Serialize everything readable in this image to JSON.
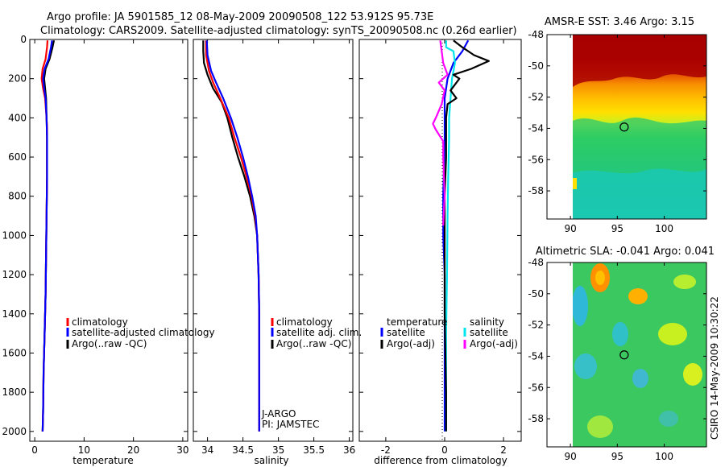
{
  "title": {
    "line1": "Argo profile: JA 5901585_12 08-May-2009 20090508_122 53.912S 95.73E",
    "line2": "Climatology: CARS2009. Satellite-adjusted climatology: synTS_20090508.nc (0.26d earlier)"
  },
  "colors": {
    "climatology": "#ff0000",
    "satellite": "#0000ff",
    "argo": "#000000",
    "sat_sal": "#00e5ee",
    "argo_sal": "#ff00ff"
  },
  "chart_data": [
    {
      "id": "temperature",
      "type": "line",
      "xlabel": "temperature",
      "ylabel": "",
      "xlim": [
        -1,
        31
      ],
      "ylim": [
        2050,
        0
      ],
      "xticks": [
        0,
        10,
        20,
        30
      ],
      "yticks": [
        0,
        200,
        400,
        600,
        800,
        1000,
        1200,
        1400,
        1600,
        1800,
        2000
      ],
      "legend": [
        "climatology",
        "satellite-adjusted climatology",
        "Argo(..raw -QC)"
      ],
      "series": [
        {
          "name": "Argo(..raw -QC)",
          "color": "#000000",
          "points": [
            [
              3.9,
              5
            ],
            [
              3.6,
              40
            ],
            [
              3.0,
              100
            ],
            [
              2.2,
              150
            ],
            [
              1.9,
              200
            ],
            [
              2.1,
              250
            ],
            [
              2.3,
              300
            ],
            [
              2.4,
              400
            ],
            [
              2.5,
              500
            ],
            [
              2.5,
              700
            ],
            [
              2.4,
              900
            ],
            [
              2.3,
              1100
            ],
            [
              2.2,
              1300
            ],
            [
              2.0,
              1500
            ],
            [
              1.8,
              1700
            ],
            [
              1.7,
              1900
            ],
            [
              1.6,
              2000
            ]
          ]
        },
        {
          "name": "climatology",
          "color": "#ff0000",
          "points": [
            [
              2.6,
              5
            ],
            [
              2.5,
              40
            ],
            [
              2.2,
              100
            ],
            [
              1.6,
              150
            ],
            [
              1.4,
              200
            ],
            [
              1.7,
              250
            ],
            [
              2.1,
              300
            ],
            [
              2.4,
              400
            ],
            [
              2.5,
              450
            ],
            [
              2.5,
              700
            ],
            [
              2.4,
              900
            ],
            [
              2.3,
              1100
            ],
            [
              2.2,
              1300
            ],
            [
              2.0,
              1500
            ],
            [
              1.8,
              1700
            ],
            [
              1.7,
              1900
            ],
            [
              1.6,
              2000
            ]
          ]
        },
        {
          "name": "satellite-adjusted climatology",
          "color": "#0000ff",
          "points": [
            [
              3.5,
              5
            ],
            [
              3.3,
              40
            ],
            [
              2.8,
              100
            ],
            [
              2.0,
              150
            ],
            [
              1.7,
              200
            ],
            [
              1.9,
              250
            ],
            [
              2.2,
              300
            ],
            [
              2.4,
              400
            ],
            [
              2.5,
              500
            ],
            [
              2.5,
              700
            ],
            [
              2.4,
              900
            ],
            [
              2.3,
              1100
            ],
            [
              2.2,
              1300
            ],
            [
              2.0,
              1500
            ],
            [
              1.8,
              1700
            ],
            [
              1.7,
              1900
            ],
            [
              1.6,
              2000
            ]
          ]
        }
      ]
    },
    {
      "id": "salinity",
      "type": "line",
      "xlabel": "salinity",
      "ylabel": "",
      "xlim": [
        33.8,
        36.05
      ],
      "ylim": [
        2050,
        0
      ],
      "xticks": [
        34,
        34.5,
        35,
        35.5,
        36
      ],
      "legend": [
        "climatology",
        "satellite adj. clim.",
        "Argo(..raw -QC)"
      ],
      "annotation": [
        "J-ARGO",
        "PI: JAMSTEC"
      ],
      "series": [
        {
          "name": "Argo(..raw -QC)",
          "color": "#000000",
          "points": [
            [
              33.94,
              5
            ],
            [
              33.94,
              60
            ],
            [
              33.95,
              120
            ],
            [
              34.0,
              180
            ],
            [
              34.08,
              250
            ],
            [
              34.2,
              320
            ],
            [
              34.28,
              400
            ],
            [
              34.35,
              500
            ],
            [
              34.43,
              600
            ],
            [
              34.52,
              700
            ],
            [
              34.6,
              800
            ],
            [
              34.66,
              900
            ],
            [
              34.7,
              1000
            ],
            [
              34.72,
              1200
            ],
            [
              34.73,
              1400
            ],
            [
              34.73,
              1600
            ],
            [
              34.73,
              1800
            ],
            [
              34.73,
              2000
            ]
          ]
        },
        {
          "name": "climatology",
          "color": "#ff0000",
          "points": [
            [
              33.98,
              5
            ],
            [
              33.98,
              80
            ],
            [
              34.02,
              160
            ],
            [
              34.08,
              220
            ],
            [
              34.18,
              300
            ],
            [
              34.3,
              400
            ],
            [
              34.38,
              500
            ],
            [
              34.47,
              600
            ],
            [
              34.55,
              700
            ],
            [
              34.62,
              800
            ],
            [
              34.67,
              900
            ],
            [
              34.7,
              1000
            ],
            [
              34.72,
              1200
            ],
            [
              34.73,
              1400
            ],
            [
              34.73,
              1600
            ],
            [
              34.73,
              1800
            ],
            [
              34.73,
              2000
            ]
          ]
        },
        {
          "name": "satellite adj. clim.",
          "color": "#0000ff",
          "points": [
            [
              33.99,
              5
            ],
            [
              34.0,
              80
            ],
            [
              34.05,
              160
            ],
            [
              34.12,
              220
            ],
            [
              34.22,
              300
            ],
            [
              34.33,
              400
            ],
            [
              34.42,
              500
            ],
            [
              34.5,
              600
            ],
            [
              34.57,
              700
            ],
            [
              34.63,
              800
            ],
            [
              34.68,
              900
            ],
            [
              34.7,
              1000
            ],
            [
              34.72,
              1200
            ],
            [
              34.73,
              1400
            ],
            [
              34.73,
              1600
            ],
            [
              34.73,
              1800
            ],
            [
              34.73,
              2000
            ]
          ]
        }
      ]
    },
    {
      "id": "difference",
      "type": "line",
      "xlabel": "difference from climatology",
      "ylabel": "",
      "xlim": [
        -2.9,
        2.6
      ],
      "ylim": [
        2050,
        0
      ],
      "xticks": [
        -2,
        0,
        2
      ],
      "legend": [
        "temperature",
        "satellite",
        "Argo(-adj)",
        "salinity",
        "satellite",
        "Argo(-adj)"
      ],
      "series": [
        {
          "name": "temperature satellite",
          "color": "#0000ff",
          "points": [
            [
              0.8,
              5
            ],
            [
              0.6,
              60
            ],
            [
              0.3,
              120
            ],
            [
              0.1,
              200
            ],
            [
              0.0,
              300
            ],
            [
              0.0,
              500
            ],
            [
              -0.05,
              800
            ],
            [
              -0.05,
              1000
            ],
            [
              0.0,
              1200
            ],
            [
              0.0,
              1600
            ],
            [
              0.0,
              2000
            ]
          ]
        },
        {
          "name": "salinity satellite",
          "color": "#00e5ee",
          "points": [
            [
              0.05,
              5
            ],
            [
              0.05,
              40
            ],
            [
              0.3,
              60
            ],
            [
              0.35,
              120
            ],
            [
              0.25,
              200
            ],
            [
              0.2,
              300
            ],
            [
              0.15,
              400
            ],
            [
              0.15,
              500
            ],
            [
              0.12,
              700
            ],
            [
              0.1,
              900
            ],
            [
              0.08,
              1200
            ],
            [
              0.05,
              1500
            ],
            [
              0.05,
              1800
            ],
            [
              0.05,
              2000
            ]
          ]
        },
        {
          "name": "temperature Argo(-adj)",
          "color": "#000000",
          "points": [
            [
              0.3,
              5
            ],
            [
              0.6,
              40
            ],
            [
              1.0,
              80
            ],
            [
              1.5,
              110
            ],
            [
              0.9,
              150
            ],
            [
              0.3,
              180
            ],
            [
              0.5,
              200
            ],
            [
              0.2,
              260
            ],
            [
              0.4,
              300
            ],
            [
              0.1,
              330
            ],
            [
              0.05,
              400
            ],
            [
              0.05,
              600
            ],
            [
              0.0,
              800
            ],
            [
              0.0,
              1000
            ],
            [
              0.0,
              1400
            ],
            [
              0.05,
              1800
            ],
            [
              0.05,
              2000
            ]
          ]
        },
        {
          "name": "salinity Argo(-adj)",
          "color": "#ff00ff",
          "points": [
            [
              -0.15,
              5
            ],
            [
              -0.1,
              60
            ],
            [
              -0.05,
              120
            ],
            [
              0.1,
              180
            ],
            [
              -0.2,
              220
            ],
            [
              0.0,
              260
            ],
            [
              -0.1,
              330
            ],
            [
              -0.3,
              400
            ],
            [
              -0.4,
              430
            ],
            [
              -0.3,
              460
            ],
            [
              -0.05,
              520
            ],
            [
              -0.05,
              600
            ],
            [
              0.0,
              800
            ],
            [
              -0.05,
              950
            ]
          ]
        }
      ]
    },
    {
      "id": "sst-map",
      "type": "heatmap",
      "title": "AMSR-E SST: 3.46 Argo: 3.15",
      "xlim": [
        87.5,
        104.5
      ],
      "ylim": [
        -59.8,
        -48.0
      ],
      "xticks": [
        90,
        95,
        100
      ],
      "yticks": [
        -48,
        -50,
        -52,
        -54,
        -56,
        -58
      ],
      "data_xlim": [
        90,
        104.5
      ],
      "marker": [
        95.73,
        -53.912
      ]
    },
    {
      "id": "sla-map",
      "type": "heatmap",
      "title": "Altimetric SLA: -0.041 Argo: 0.041",
      "xlim": [
        87.5,
        104.5
      ],
      "ylim": [
        -59.8,
        -48.0
      ],
      "xticks": [
        90,
        95,
        100
      ],
      "yticks": [
        -48,
        -50,
        -52,
        -54,
        -56,
        -58
      ],
      "data_xlim": [
        90,
        104.5
      ],
      "marker": [
        95.73,
        -53.912
      ]
    }
  ],
  "side_label": "CSIRO 14-May-2009 10:30:22"
}
